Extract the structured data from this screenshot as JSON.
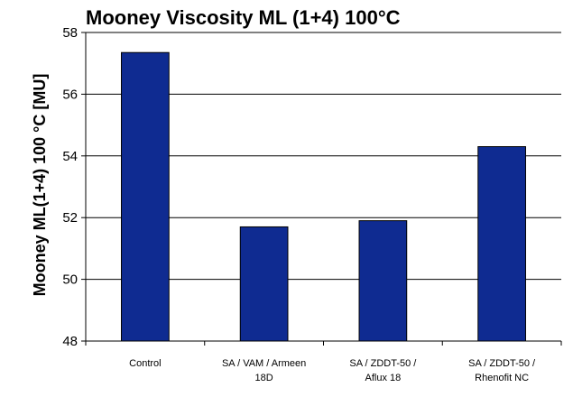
{
  "chart_data": {
    "type": "bar",
    "title": "Mooney Viscosity ML (1+4) 100°C",
    "xlabel": "",
    "ylabel": "Mooney ML(1+4) 100 °C [MU]",
    "ylim": [
      48,
      58
    ],
    "yticks": [
      48,
      50,
      52,
      54,
      56,
      58
    ],
    "grid": true,
    "categories": [
      [
        "Control"
      ],
      [
        "SA / VAM / Armeen",
        "18D"
      ],
      [
        "SA / ZDDT-50 /",
        "Aflux 18"
      ],
      [
        "SA / ZDDT-50 /",
        "Rhenofit NC"
      ]
    ],
    "values": [
      57.35,
      51.7,
      51.9,
      54.3
    ],
    "colors": {
      "bar": "#0f2b91",
      "bar_edge": "#000000",
      "grid": "#000000"
    }
  }
}
